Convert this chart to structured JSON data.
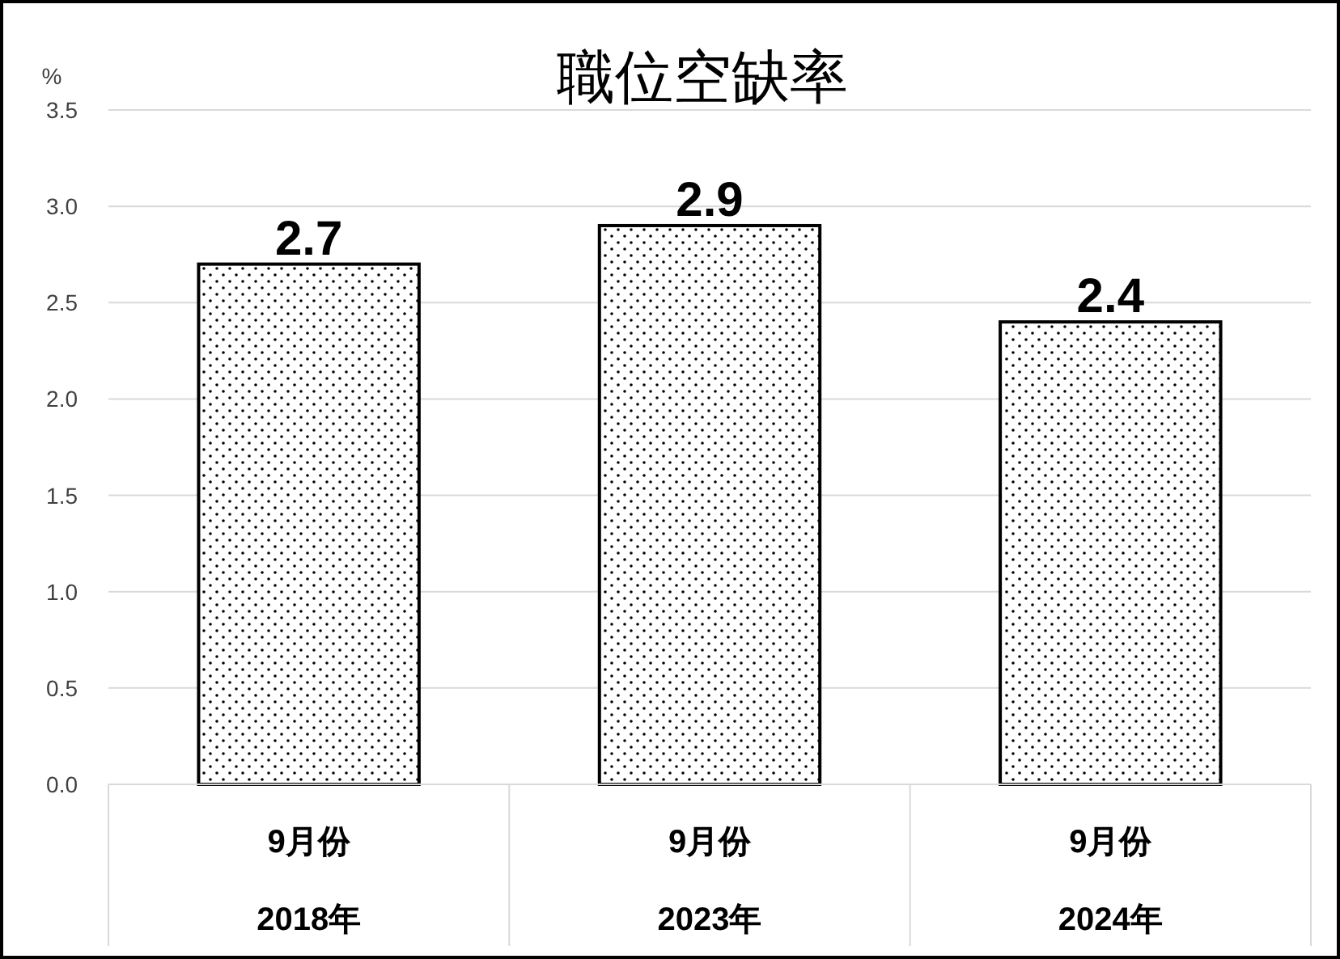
{
  "chart_data": {
    "type": "bar",
    "title": "職位空缺率",
    "ylabel": "%",
    "categories": [
      "9月份\n2018年",
      "9月份\n2023年",
      "9月份\n2024年"
    ],
    "values": [
      2.7,
      2.9,
      2.4
    ],
    "color": "#000000",
    "ylim": [
      0,
      3.5
    ],
    "yticks": [
      "0.0",
      "0.5",
      "1.0",
      "1.5",
      "2.0",
      "2.5",
      "3.0",
      "3.5"
    ],
    "grid": "y",
    "data_labels": true
  }
}
